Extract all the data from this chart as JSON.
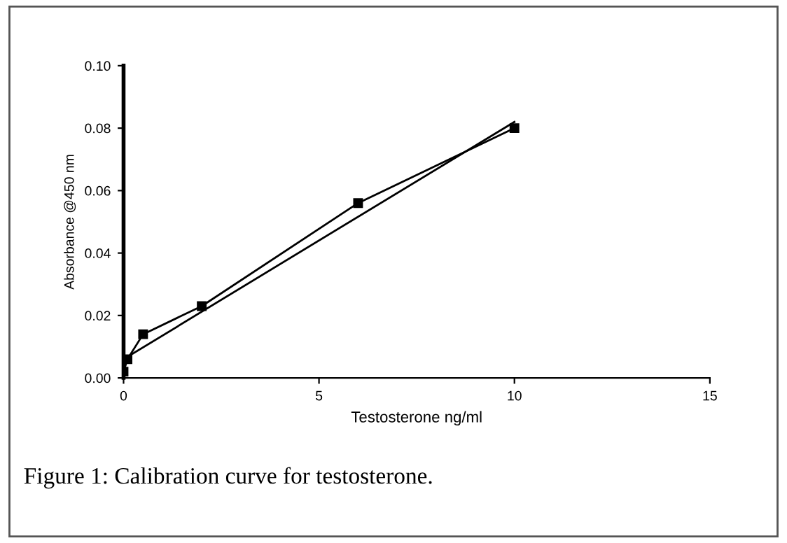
{
  "chart_data": {
    "type": "line",
    "xlabel": "Testosterone ng/ml",
    "ylabel": "Absorbance @450 nm",
    "xlim": [
      0,
      15
    ],
    "xticks": [
      0,
      5,
      10,
      15
    ],
    "ylim": [
      0,
      0.1
    ],
    "yticks": [
      {
        "value": 0,
        "label": "0.00"
      },
      {
        "value": 0.02,
        "label": "0.02"
      },
      {
        "value": 0.04,
        "label": "0.04"
      },
      {
        "value": 0.06,
        "label": "0.06"
      },
      {
        "value": 0.08,
        "label": "0.08"
      },
      {
        "value": 0.1,
        "label": "0.10"
      }
    ],
    "grid": false,
    "legend": false,
    "series": [
      {
        "color": "#000000",
        "marker": "square",
        "x": [
          0,
          0.1,
          0.5,
          2,
          6,
          10
        ],
        "values": [
          0.002,
          0.006,
          0.014,
          0.023,
          0.056,
          0.08
        ]
      },
      {
        "color": "#000000",
        "marker": "none",
        "x": [
          0,
          10
        ],
        "values": [
          0.006,
          0.082
        ]
      }
    ],
    "annotations": [
      "Figure 1: Calibration curve for testosterone."
    ]
  }
}
